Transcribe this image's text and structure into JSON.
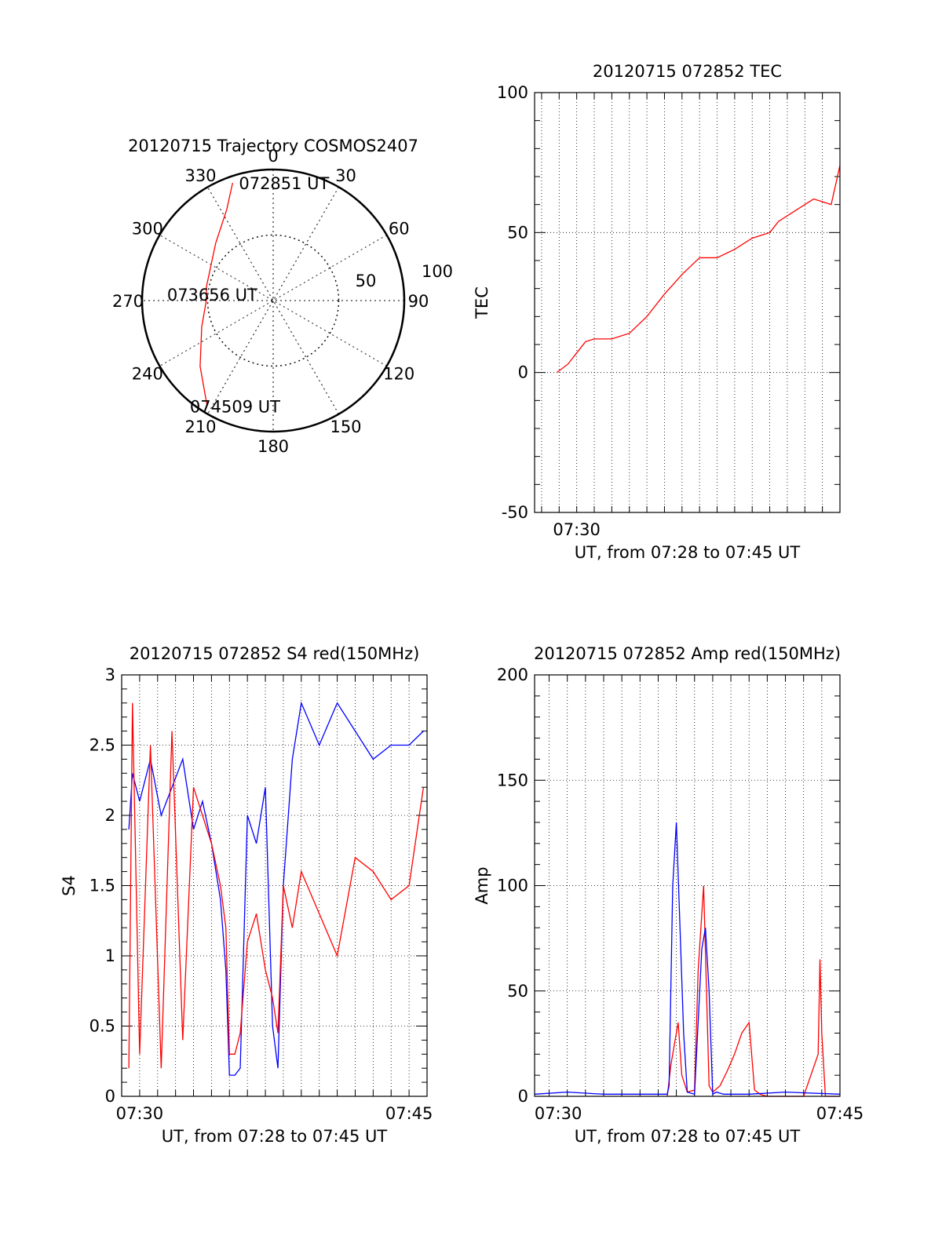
{
  "chart_data": [
    {
      "type": "polar",
      "title": "20120715 Trajectory COSMOS2407",
      "azimuth_labels": [
        "0",
        "30",
        "60",
        "90",
        "120",
        "150",
        "180",
        "210",
        "240",
        "270",
        "300",
        "330"
      ],
      "radial_ticks": [
        "50",
        "100"
      ],
      "rlim": [
        0,
        100
      ],
      "grid": true,
      "series": [
        {
          "color": "#ff0000",
          "points": [
            [
              341,
              95
            ],
            [
              333,
              78
            ],
            [
              315,
              62
            ],
            [
              282,
              52
            ],
            [
              270,
              51
            ],
            [
              250,
              58
            ],
            [
              228,
              75
            ],
            [
              212,
              95
            ]
          ]
        }
      ],
      "annotations": [
        {
          "text": "072851 UT",
          "azimuth": 341,
          "radius": 95
        },
        {
          "text": "073656 UT",
          "azimuth": 270,
          "radius": 51
        },
        {
          "text": "074509 UT",
          "azimuth": 212,
          "radius": 95
        }
      ]
    },
    {
      "type": "line",
      "title": "20120715 072852 TEC",
      "xlabel": "UT, from 07:28 to 07:45 UT",
      "ylabel": "TEC",
      "xlim": [
        27.6,
        45.0
      ],
      "ylim": [
        -50,
        100
      ],
      "yticks": [
        "-50",
        "0",
        "50",
        "100"
      ],
      "xtick_labels": [
        {
          "x": 30,
          "label": "07:30"
        }
      ],
      "grid": true,
      "series": [
        {
          "color": "#ff0000",
          "x": [
            28.87,
            29.5,
            30.0,
            30.5,
            31.0,
            32.0,
            33.0,
            34.0,
            35.0,
            36.0,
            37.0,
            38.0,
            39.0,
            40.0,
            41.0,
            41.5,
            42.5,
            43.5,
            44.5,
            45.0
          ],
          "y": [
            0,
            3,
            7,
            11,
            12,
            12,
            14,
            20,
            28,
            35,
            41,
            41,
            44,
            48,
            50,
            54,
            58,
            62,
            60,
            74
          ]
        }
      ]
    },
    {
      "type": "line",
      "title": "20120715 072852 S4 red(150MHz)",
      "xlabel": "UT, from 07:28 to 07:45 UT",
      "ylabel": "S4",
      "xlim": [
        29.0,
        46.0
      ],
      "ylim": [
        0,
        3
      ],
      "yticks": [
        "0",
        "0.5",
        "1",
        "1.5",
        "2",
        "2.5",
        "3"
      ],
      "xtick_labels": [
        {
          "x": 30,
          "label": "07:30"
        },
        {
          "x": 45,
          "label": "07:45"
        }
      ],
      "grid": true,
      "series": [
        {
          "color": "#0000ff",
          "x": [
            29.4,
            29.6,
            30.0,
            30.6,
            31.2,
            31.8,
            32.4,
            33.0,
            33.5,
            34.0,
            34.5,
            34.8,
            35.0,
            35.3,
            35.6,
            36.0,
            36.5,
            37.0,
            37.4,
            37.7,
            38.0,
            38.5,
            39.0,
            40.0,
            41.0,
            42.0,
            43.0,
            44.0,
            45.0,
            45.8
          ],
          "y": [
            1.9,
            2.3,
            2.1,
            2.4,
            2.0,
            2.2,
            2.4,
            1.9,
            2.1,
            1.8,
            1.4,
            0.9,
            0.15,
            0.15,
            0.2,
            2.0,
            1.8,
            2.2,
            0.5,
            0.2,
            1.5,
            2.4,
            2.8,
            2.5,
            2.8,
            2.6,
            2.4,
            2.5,
            2.5,
            2.6
          ]
        },
        {
          "color": "#ff0000",
          "x": [
            29.4,
            29.6,
            30.0,
            30.6,
            31.2,
            31.8,
            32.4,
            33.0,
            33.5,
            34.0,
            34.5,
            34.8,
            35.0,
            35.3,
            35.6,
            36.0,
            36.5,
            37.0,
            37.4,
            37.7,
            38.0,
            38.5,
            39.0,
            40.0,
            41.0,
            42.0,
            43.0,
            44.0,
            45.0,
            45.8
          ],
          "y": [
            0.2,
            2.8,
            0.3,
            2.5,
            0.2,
            2.6,
            0.4,
            2.2,
            2.0,
            1.8,
            1.5,
            1.2,
            0.3,
            0.3,
            0.45,
            1.1,
            1.3,
            0.9,
            0.7,
            0.45,
            1.5,
            1.2,
            1.6,
            1.3,
            1.0,
            1.7,
            1.6,
            1.4,
            1.5,
            2.2
          ]
        }
      ]
    },
    {
      "type": "line",
      "title": "20120715 072852 Amp red(150MHz)",
      "xlabel": "UT, from 07:28 to 07:45 UT",
      "ylabel": "Amp",
      "xlim": [
        28.2,
        45.0
      ],
      "ylim": [
        0,
        200
      ],
      "yticks": [
        "0",
        "50",
        "100",
        "150",
        "200"
      ],
      "xtick_labels": [
        {
          "x": 29.5,
          "label": "07:30"
        },
        {
          "x": 45.0,
          "label": "07:45"
        }
      ],
      "grid": true,
      "series": [
        {
          "color": "#ff0000",
          "x": [
            35.5,
            35.7,
            35.9,
            36.1,
            36.3,
            36.6,
            37.0,
            37.2,
            37.5,
            37.8,
            38.0,
            38.4,
            38.8,
            39.2,
            39.6,
            40.0,
            40.3,
            40.6,
            41.0,
            42.0,
            43.0,
            43.8,
            43.9,
            44.0,
            44.2,
            45.0
          ],
          "y": [
            0,
            15,
            25,
            35,
            10,
            2,
            3,
            60,
            100,
            5,
            2,
            5,
            12,
            20,
            30,
            35,
            3,
            1,
            0,
            0,
            0,
            20,
            65,
            30,
            0,
            0
          ]
        },
        {
          "color": "#0000ff",
          "x": [
            28.2,
            30.0,
            32.0,
            34.0,
            35.5,
            35.6,
            35.8,
            36.0,
            36.2,
            36.4,
            36.6,
            37.0,
            37.4,
            37.6,
            37.8,
            38.0,
            38.2,
            38.6,
            40.0,
            42.0,
            45.0
          ],
          "y": [
            1,
            2,
            1,
            1,
            1,
            5,
            100,
            130,
            80,
            30,
            2,
            1,
            70,
            80,
            50,
            1,
            2,
            1,
            1,
            2,
            1
          ]
        }
      ]
    }
  ]
}
